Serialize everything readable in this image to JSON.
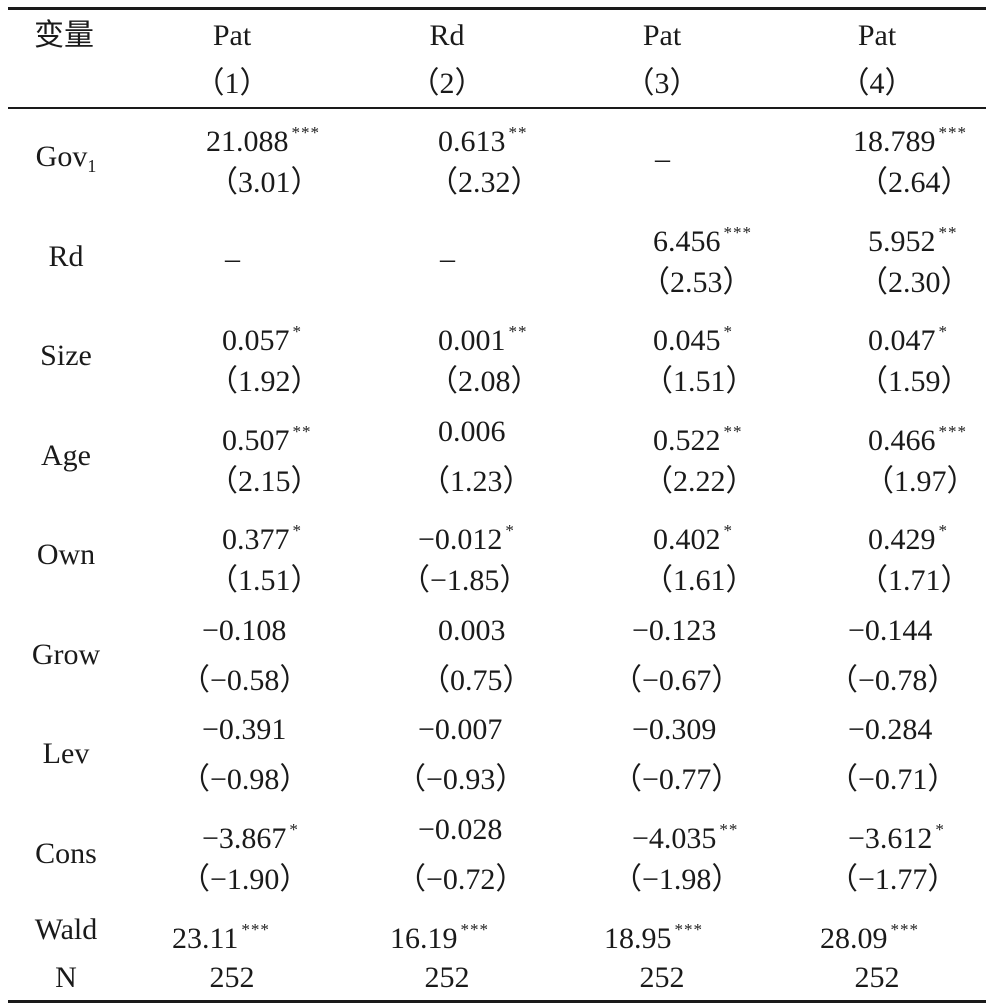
{
  "header": {
    "var_label": "变量",
    "columns": [
      {
        "dep": "Pat",
        "num": "（1）"
      },
      {
        "dep": "Rd",
        "num": "（2）"
      },
      {
        "dep": "Pat",
        "num": "（3）"
      },
      {
        "dep": "Pat",
        "num": "（4）"
      }
    ]
  },
  "rows": [
    {
      "label": "Gov",
      "label_sub": "1",
      "cells": [
        {
          "coef": "21.088",
          "stars": "***",
          "t": "（3.01）"
        },
        {
          "coef": "0.613",
          "stars": "**",
          "t": "（2.32）"
        },
        {
          "coef": "–",
          "stars": "",
          "t": ""
        },
        {
          "coef": "18.789",
          "stars": "***",
          "t": "（2.64）"
        }
      ]
    },
    {
      "label": "Rd",
      "label_sub": "",
      "cells": [
        {
          "coef": "–",
          "stars": "",
          "t": ""
        },
        {
          "coef": "–",
          "stars": "",
          "t": ""
        },
        {
          "coef": "6.456",
          "stars": "***",
          "t": "（2.53）"
        },
        {
          "coef": "5.952",
          "stars": "**",
          "t": "（2.30）"
        }
      ]
    },
    {
      "label": "Size",
      "label_sub": "",
      "cells": [
        {
          "coef": "0.057",
          "stars": "*",
          "t": "（1.92）"
        },
        {
          "coef": "0.001",
          "stars": "**",
          "t": "（2.08）"
        },
        {
          "coef": "0.045",
          "stars": "*",
          "t": "（1.51）"
        },
        {
          "coef": "0.047",
          "stars": "*",
          "t": "（1.59）"
        }
      ]
    },
    {
      "label": "Age",
      "label_sub": "",
      "cells": [
        {
          "coef": "0.507",
          "stars": "**",
          "t": "（2.15）"
        },
        {
          "coef": "0.006",
          "stars": "",
          "t": "（1.23）"
        },
        {
          "coef": "0.522",
          "stars": "**",
          "t": "（2.22）"
        },
        {
          "coef": "0.466",
          "stars": "***",
          "t": "（1.97）"
        }
      ]
    },
    {
      "label": "Own",
      "label_sub": "",
      "cells": [
        {
          "coef": "0.377",
          "stars": "*",
          "t": "（1.51）"
        },
        {
          "coef": "−0.012",
          "stars": "*",
          "t": "（−1.85）"
        },
        {
          "coef": "0.402",
          "stars": "*",
          "t": "（1.61）"
        },
        {
          "coef": "0.429",
          "stars": "*",
          "t": "（1.71）"
        }
      ]
    },
    {
      "label": "Grow",
      "label_sub": "",
      "cells": [
        {
          "coef": "−0.108",
          "stars": "",
          "t": "（−0.58）"
        },
        {
          "coef": "0.003",
          "stars": "",
          "t": "（0.75）"
        },
        {
          "coef": "−0.123",
          "stars": "",
          "t": "（−0.67）"
        },
        {
          "coef": "−0.144",
          "stars": "",
          "t": "（−0.78）"
        }
      ]
    },
    {
      "label": "Lev",
      "label_sub": "",
      "cells": [
        {
          "coef": "−0.391",
          "stars": "",
          "t": "（−0.98）"
        },
        {
          "coef": "−0.007",
          "stars": "",
          "t": "（−0.93）"
        },
        {
          "coef": "−0.309",
          "stars": "",
          "t": "（−0.77）"
        },
        {
          "coef": "−0.284",
          "stars": "",
          "t": "（−0.71）"
        }
      ]
    },
    {
      "label": "Cons",
      "label_sub": "",
      "cells": [
        {
          "coef": "−3.867",
          "stars": "*",
          "t": "（−1.90）"
        },
        {
          "coef": "−0.028",
          "stars": "",
          "t": "（−0.72）"
        },
        {
          "coef": "−4.035",
          "stars": "**",
          "t": "（−1.98）"
        },
        {
          "coef": "−3.612",
          "stars": "*",
          "t": "（−1.77）"
        }
      ]
    }
  ],
  "wald": {
    "label": "Wald",
    "cells": [
      {
        "coef": "23.11",
        "stars": "***"
      },
      {
        "coef": "16.19",
        "stars": "***"
      },
      {
        "coef": "18.95",
        "stars": "***"
      },
      {
        "coef": "28.09",
        "stars": "***"
      }
    ]
  },
  "n": {
    "label": "N",
    "cells": [
      "252",
      "252",
      "252",
      "252"
    ]
  }
}
